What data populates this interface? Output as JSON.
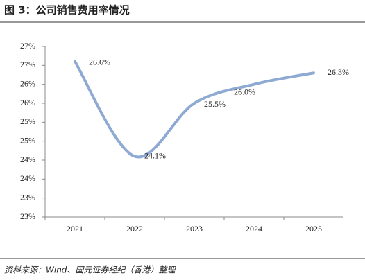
{
  "chart_data": {
    "type": "line",
    "title": "图 3：公司销售费用率情况",
    "source": "资料来源：Wind、国元证券经纪（香港）整理",
    "categories": [
      "2021",
      "2022",
      "2023",
      "2024",
      "2025"
    ],
    "series": [
      {
        "name": "销售费用率",
        "color": "#8eaad3",
        "values": [
          26.6,
          24.1,
          25.5,
          26.0,
          26.3
        ],
        "value_labels": [
          "26.6%",
          "24.1%",
          "25.5%",
          "26.0%",
          "26.3%"
        ]
      }
    ],
    "ylim": [
      22.5,
      27
    ],
    "yticks": [
      {
        "value": 22.5,
        "label": "23%"
      },
      {
        "value": 23,
        "label": "23%"
      },
      {
        "value": 23.5,
        "label": "24%"
      },
      {
        "value": 24,
        "label": "24%"
      },
      {
        "value": 24.5,
        "label": "25%"
      },
      {
        "value": 25,
        "label": "25%"
      },
      {
        "value": 25.5,
        "label": "26%"
      },
      {
        "value": 26,
        "label": "26%"
      },
      {
        "value": 26.5,
        "label": "27%"
      },
      {
        "value": 27,
        "label": "27%"
      }
    ],
    "smooth": true
  }
}
